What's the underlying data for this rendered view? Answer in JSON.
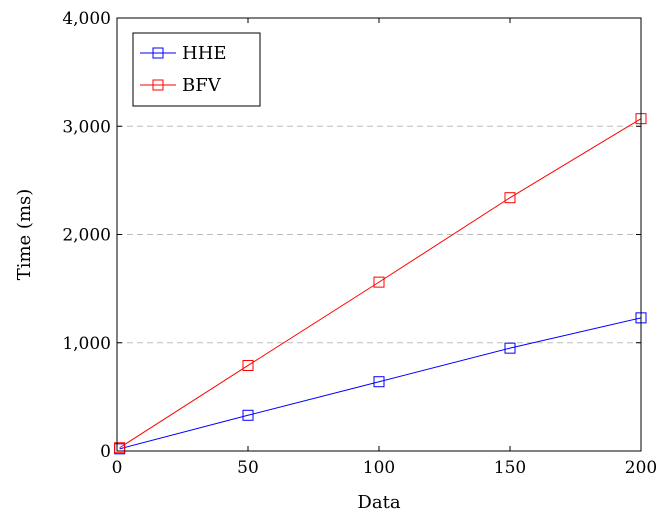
{
  "chart_data": {
    "type": "line",
    "title": "",
    "xlabel": "Data",
    "ylabel": "Time (ms)",
    "xlim": [
      0,
      200
    ],
    "ylim": [
      0,
      4000
    ],
    "x_ticks": [
      0,
      50,
      100,
      150,
      200
    ],
    "y_ticks": [
      0,
      1000,
      2000,
      3000,
      4000
    ],
    "x_tick_labels": [
      "0",
      "50",
      "100",
      "150",
      "200"
    ],
    "y_tick_labels": [
      "0",
      "1,000",
      "2,000",
      "3,000",
      "4,000"
    ],
    "grid": "horizontal dashed",
    "legend_position": "top-left",
    "marker": "square",
    "x": [
      1,
      50,
      100,
      150,
      200
    ],
    "series": [
      {
        "name": "HHE",
        "color": "#0000ff",
        "values": [
          20,
          330,
          640,
          950,
          1230
        ]
      },
      {
        "name": "BFV",
        "color": "#ff0000",
        "values": [
          30,
          790,
          1560,
          2340,
          3070
        ]
      }
    ]
  }
}
